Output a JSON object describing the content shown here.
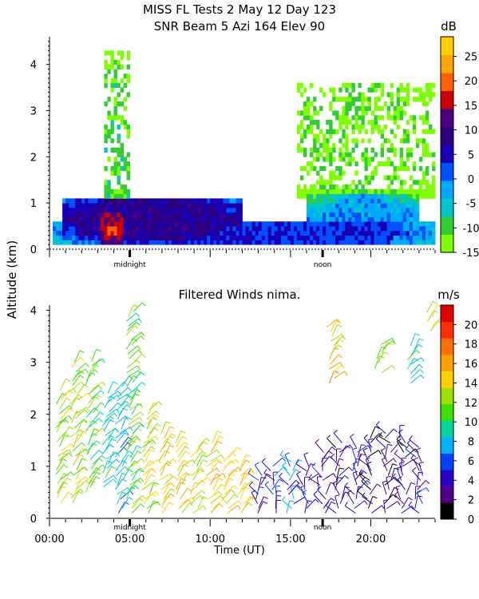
{
  "figure": {
    "title_line1": "MISS FL Tests   2 May 12 Day 123",
    "title_line2": "SNR Beam 5 Azi 164 Elev 90",
    "ylabel": "Altitude (km)",
    "xlabel": "Time (UT)",
    "marker_labels": [
      "midnight",
      "noon"
    ]
  },
  "chart_data": [
    {
      "type": "heatmap",
      "title": "SNR Beam 5 Azi 164 Elev 90",
      "xlabel": "",
      "ylabel": "Altitude (km)",
      "xlim": [
        0,
        24
      ],
      "ylim": [
        0,
        4.6
      ],
      "y_ticks": [
        0,
        1,
        2,
        3,
        4
      ],
      "x_tick_labels": [],
      "markers": [
        {
          "x": 5,
          "label": "midnight"
        },
        {
          "x": 17,
          "label": "noon"
        }
      ],
      "colorbar": {
        "unit": "dB",
        "range": [
          -15,
          29
        ],
        "ticks": [
          -15,
          -10,
          -5,
          0,
          5,
          10,
          15,
          20,
          25
        ],
        "colors": [
          "#7fff00",
          "#32cd32",
          "#00c8c8",
          "#00aaff",
          "#0050ff",
          "#1a00b4",
          "#2d0080",
          "#4b0082",
          "#cc0000",
          "#ff6000",
          "#ffa500",
          "#ffd000"
        ]
      },
      "regions": [
        {
          "x": [
            0.2,
            23.9
          ],
          "y": [
            0.15,
            0.6
          ],
          "snr": 3
        },
        {
          "x": [
            0.8,
            12
          ],
          "y": [
            0.2,
            1.1
          ],
          "snr": 8
        },
        {
          "x": [
            3.3,
            4.5
          ],
          "y": [
            0.1,
            0.8
          ],
          "snr": 20
        },
        {
          "x": [
            16,
            23
          ],
          "y": [
            0.2,
            1.2
          ],
          "snr": -2
        },
        {
          "x": [
            3.5,
            5
          ],
          "y": [
            0.5,
            4.3
          ],
          "snr": -10
        },
        {
          "x": [
            15.5,
            24
          ],
          "y": [
            1.1,
            3.6
          ],
          "snr": -12
        }
      ]
    },
    {
      "type": "scatter",
      "title": "Filtered Winds nima.",
      "xlabel": "Time (UT)",
      "ylabel": "Altitude (km)",
      "xlim": [
        0,
        24
      ],
      "ylim": [
        0,
        4.1
      ],
      "y_ticks": [
        0,
        1,
        2,
        3,
        4
      ],
      "x_tick_labels": [
        "00:00",
        "05:00",
        "10:00",
        "15:00",
        "20:00"
      ],
      "x_ticks": [
        0,
        5,
        10,
        15,
        20
      ],
      "markers": [
        {
          "x": 5,
          "label": "midnight"
        },
        {
          "x": 17,
          "label": "noon"
        }
      ],
      "colorbar": {
        "unit": "m/s",
        "range": [
          0,
          22
        ],
        "ticks": [
          0,
          2,
          4,
          6,
          8,
          10,
          12,
          14,
          16,
          18,
          20
        ],
        "colors": [
          "#000000",
          "#4b0082",
          "#2b00c0",
          "#0040ff",
          "#00b4ff",
          "#00d8a0",
          "#40e000",
          "#a0e000",
          "#ffd000",
          "#ffa000",
          "#ff7000",
          "#ff3000",
          "#e00000"
        ]
      },
      "wind_profiles": [
        {
          "t": 0.6,
          "z": [
            0.3,
            2.5
          ],
          "speed": 12
        },
        {
          "t": 1.5,
          "z": [
            0.3,
            3.0
          ],
          "speed": 13
        },
        {
          "t": 2.5,
          "z": [
            0.5,
            3.1
          ],
          "speed": 11
        },
        {
          "t": 3.5,
          "z": [
            0.6,
            2.4
          ],
          "speed": 9
        },
        {
          "t": 4.3,
          "z": [
            0.1,
            2.6
          ],
          "speed": 8
        },
        {
          "t": 5.0,
          "z": [
            0.1,
            4.0
          ],
          "speed": 11
        },
        {
          "t": 6.0,
          "z": [
            0.1,
            2.1
          ],
          "speed": 13
        },
        {
          "t": 7.0,
          "z": [
            0.1,
            1.7
          ],
          "speed": 14
        },
        {
          "t": 8.0,
          "z": [
            0.1,
            1.5
          ],
          "speed": 14
        },
        {
          "t": 9.0,
          "z": [
            0.1,
            1.4
          ],
          "speed": 13
        },
        {
          "t": 10.0,
          "z": [
            0.1,
            1.5
          ],
          "speed": 14
        },
        {
          "t": 11.0,
          "z": [
            0.1,
            1.2
          ],
          "speed": 14
        },
        {
          "t": 12.0,
          "z": [
            0.1,
            1.0
          ],
          "speed": 14
        },
        {
          "t": 13.0,
          "z": [
            0.1,
            0.9
          ],
          "speed": 4
        },
        {
          "t": 14.0,
          "z": [
            0.1,
            1.0
          ],
          "speed": 5
        },
        {
          "t": 15.0,
          "z": [
            0.1,
            1.1
          ],
          "speed": 6
        },
        {
          "t": 16.0,
          "z": [
            0.1,
            1.0
          ],
          "speed": 5
        },
        {
          "t": 17.0,
          "z": [
            0.1,
            1.3
          ],
          "speed": 4
        },
        {
          "t": 17.5,
          "z": [
            2.6,
            3.7
          ],
          "speed": 15
        },
        {
          "t": 18.0,
          "z": [
            0.1,
            1.5
          ],
          "speed": 3
        },
        {
          "t": 19.0,
          "z": [
            0.1,
            1.4
          ],
          "speed": 4
        },
        {
          "t": 20.0,
          "z": [
            0.1,
            1.6
          ],
          "speed": 2
        },
        {
          "t": 20.5,
          "z": [
            2.8,
            3.4
          ],
          "speed": 12
        },
        {
          "t": 21.0,
          "z": [
            0.1,
            1.7
          ],
          "speed": 3
        },
        {
          "t": 22.0,
          "z": [
            0.1,
            1.6
          ],
          "speed": 3
        },
        {
          "t": 22.5,
          "z": [
            2.6,
            3.4
          ],
          "speed": 9
        },
        {
          "t": 23.0,
          "z": [
            0.1,
            1.4
          ],
          "speed": 4
        },
        {
          "t": 23.6,
          "z": [
            3.6,
            4.0
          ],
          "speed": 13
        }
      ]
    }
  ]
}
